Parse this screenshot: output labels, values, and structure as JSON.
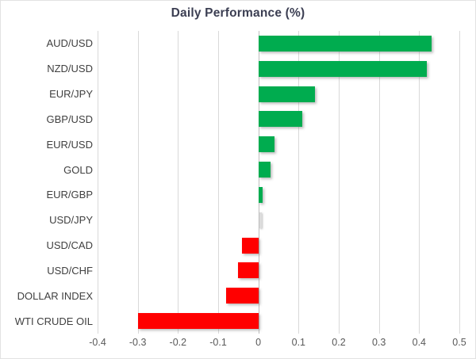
{
  "chart_data": {
    "type": "bar",
    "orientation": "horizontal",
    "title": "Daily Performance (%)",
    "categories": [
      "AUD/USD",
      "NZD/USD",
      "EUR/JPY",
      "GBP/USD",
      "EUR/USD",
      "GOLD",
      "EUR/GBP",
      "USD/JPY",
      "USD/CAD",
      "USD/CHF",
      "DOLLAR INDEX",
      "WTI CRUDE OIL"
    ],
    "values": [
      0.43,
      0.42,
      0.14,
      0.11,
      0.04,
      0.03,
      0.01,
      0.0,
      -0.04,
      -0.05,
      -0.08,
      -0.3
    ],
    "xlabel": "",
    "ylabel": "",
    "xlim": [
      -0.4,
      0.5
    ],
    "x_ticks": [
      "-0.4",
      "-0.3",
      "-0.2",
      "-0.1",
      "0",
      "0.1",
      "0.2",
      "0.3",
      "0.4",
      "0.5"
    ],
    "grid": "vertical-on",
    "legend": "none",
    "positive_color": "#00ac4f",
    "negative_color": "#ff0000",
    "gridline_color": "#d9d9d9",
    "title_color": "#3b3e52",
    "label_color": "#404040",
    "tick_label_color": "#595959"
  }
}
